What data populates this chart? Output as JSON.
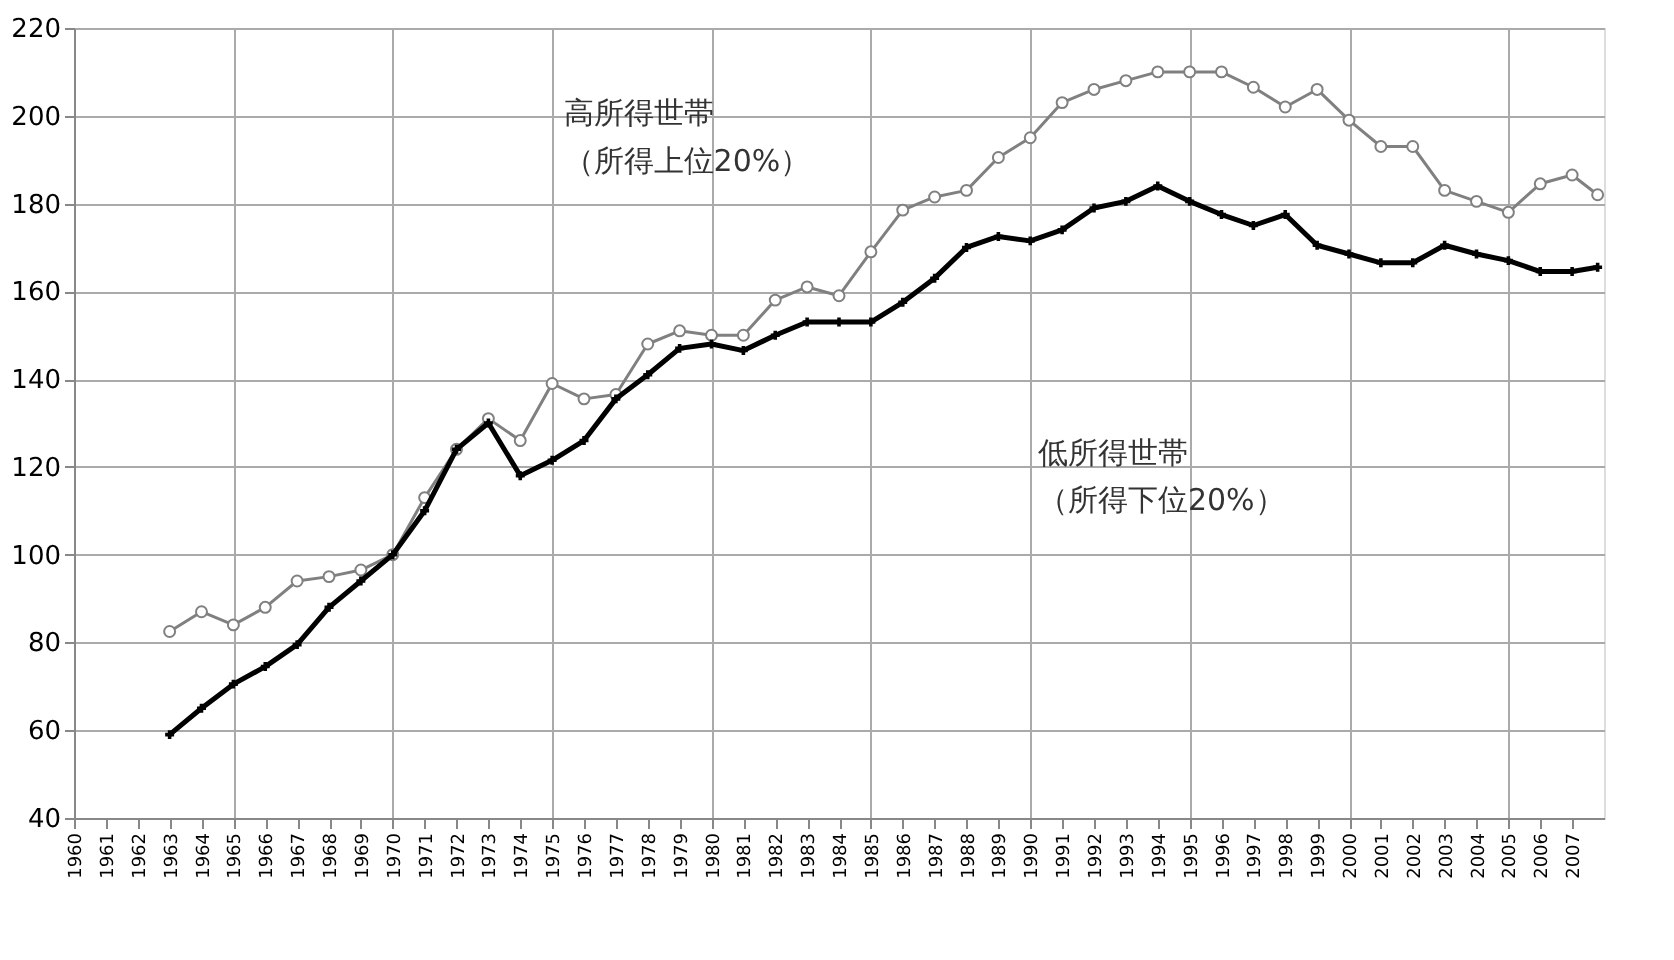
{
  "chart_data": {
    "type": "line",
    "xlim": [
      1960,
      2008
    ],
    "xticks": [
      1960,
      1961,
      1962,
      1963,
      1964,
      1965,
      1966,
      1967,
      1968,
      1969,
      1970,
      1971,
      1972,
      1973,
      1974,
      1975,
      1976,
      1977,
      1978,
      1979,
      1980,
      1981,
      1982,
      1983,
      1984,
      1985,
      1986,
      1987,
      1988,
      1989,
      1990,
      1991,
      1992,
      1993,
      1994,
      1995,
      1996,
      1997,
      1998,
      1999,
      2000,
      2001,
      2002,
      2003,
      2004,
      2005,
      2006,
      2007
    ],
    "ylim": [
      40,
      220
    ],
    "yticks": [
      40,
      60,
      80,
      100,
      120,
      140,
      160,
      180,
      200,
      220
    ],
    "grid": true,
    "series": [
      {
        "color": "#808080",
        "marker": "circle",
        "x": [
          1963,
          1964,
          1965,
          1966,
          1967,
          1968,
          1969,
          1970,
          1971,
          1972,
          1973,
          1974,
          1975,
          1976,
          1977,
          1978,
          1979,
          1980,
          1981,
          1982,
          1983,
          1984,
          1985,
          1986,
          1987,
          1988,
          1989,
          1990,
          1991,
          1992,
          1993,
          1994,
          1995,
          1996,
          1997,
          1998,
          1999,
          2000,
          2001,
          2002,
          2003,
          2004,
          2005,
          2006,
          2007,
          2007.8
        ],
        "values": [
          82.5,
          87,
          84,
          88,
          94,
          95,
          96.5,
          100,
          113,
          124,
          131,
          126,
          139,
          135.5,
          136.5,
          148,
          151,
          150,
          150,
          158,
          161,
          159,
          169,
          178.5,
          181.5,
          183,
          190.5,
          195,
          203,
          206,
          208,
          210,
          210,
          210,
          206.5,
          202,
          206,
          199,
          193,
          193,
          183,
          180.5,
          178,
          184.5,
          186.5,
          182
        ]
      },
      {
        "color": "#000000",
        "marker": "cross",
        "x": [
          1963,
          1964,
          1965,
          1966,
          1967,
          1968,
          1969,
          1970,
          1971,
          1972,
          1973,
          1974,
          1975,
          1976,
          1977,
          1978,
          1979,
          1980,
          1981,
          1982,
          1983,
          1984,
          1985,
          1986,
          1987,
          1988,
          1989,
          1990,
          1991,
          1992,
          1993,
          1994,
          1995,
          1996,
          1997,
          1998,
          1999,
          2000,
          2001,
          2002,
          2003,
          2004,
          2005,
          2006,
          2007,
          2007.8
        ],
        "values": [
          59,
          65,
          70.5,
          74.5,
          79.5,
          88,
          94,
          100,
          110,
          124,
          130,
          118,
          121.5,
          126,
          135.5,
          141,
          147,
          148,
          146.5,
          150,
          153,
          153,
          153,
          157.5,
          163,
          170,
          172.5,
          171.5,
          174,
          179,
          180.5,
          184,
          180.5,
          177.5,
          175,
          177.5,
          170.5,
          168.5,
          166.5,
          166.5,
          170.5,
          168.5,
          167,
          164.5,
          164.5,
          165.5
        ]
      }
    ],
    "annotations": [
      "高所得世帯",
      "（所得上位20%）",
      "低所得世帯",
      "（所得下位20%）"
    ]
  }
}
